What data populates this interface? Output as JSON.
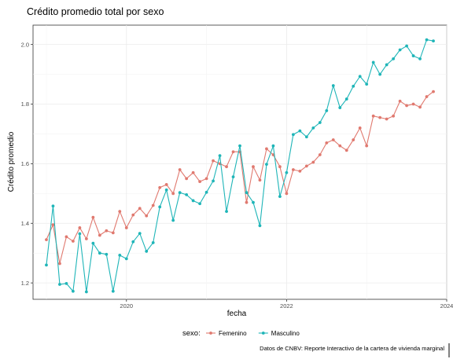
{
  "chart_data": {
    "type": "line",
    "title": "Crédito promedio total por sexo",
    "xlabel": "fecha",
    "ylabel": "Crédito promedio",
    "caption": "Datos de CNBV: Reporte Interactivo de la cartera de vivienda marginal",
    "legend": {
      "title": "sexo:",
      "placement": "bottom"
    },
    "x_axis": {
      "type": "date",
      "ticks": [
        "2020",
        "2022",
        "2024"
      ],
      "range": [
        "2018-11",
        "2024-01"
      ]
    },
    "y_axis": {
      "ticks": [
        "1.2",
        "1.4",
        "1.6",
        "1.8",
        "2.0"
      ],
      "range": [
        1.145,
        2.065
      ]
    },
    "grid": true,
    "x": [
      "2019-01",
      "2019-02",
      "2019-03",
      "2019-04",
      "2019-05",
      "2019-06",
      "2019-07",
      "2019-08",
      "2019-09",
      "2019-10",
      "2019-11",
      "2019-12",
      "2020-01",
      "2020-02",
      "2020-03",
      "2020-04",
      "2020-05",
      "2020-06",
      "2020-07",
      "2020-08",
      "2020-09",
      "2020-10",
      "2020-11",
      "2020-12",
      "2021-01",
      "2021-02",
      "2021-03",
      "2021-04",
      "2021-05",
      "2021-06",
      "2021-07",
      "2021-08",
      "2021-09",
      "2021-10",
      "2021-11",
      "2021-12",
      "2022-01",
      "2022-02",
      "2022-03",
      "2022-04",
      "2022-05",
      "2022-06",
      "2022-07",
      "2022-08",
      "2022-09",
      "2022-10",
      "2022-11",
      "2022-12",
      "2023-01",
      "2023-02",
      "2023-03",
      "2023-04",
      "2023-05",
      "2023-06",
      "2023-07",
      "2023-08",
      "2023-09",
      "2023-10",
      "2023-11"
    ],
    "series": [
      {
        "name": "Femenino",
        "color": "#E0796F",
        "values": [
          1.345,
          1.395,
          1.265,
          1.355,
          1.34,
          1.385,
          1.348,
          1.42,
          1.36,
          1.375,
          1.368,
          1.44,
          1.385,
          1.428,
          1.45,
          1.425,
          1.46,
          1.52,
          1.53,
          1.5,
          1.58,
          1.55,
          1.57,
          1.54,
          1.55,
          1.61,
          1.6,
          1.59,
          1.64,
          1.64,
          1.47,
          1.59,
          1.545,
          1.65,
          1.63,
          1.59,
          1.5,
          1.58,
          1.575,
          1.592,
          1.605,
          1.63,
          1.67,
          1.68,
          1.66,
          1.645,
          1.68,
          1.72,
          1.66,
          1.76,
          1.755,
          1.75,
          1.76,
          1.81,
          1.795,
          1.8,
          1.79,
          1.825,
          1.842
        ]
      },
      {
        "name": "Masculino",
        "color": "#1FB5B8",
        "values": [
          1.26,
          1.458,
          1.195,
          1.198,
          1.172,
          1.365,
          1.17,
          1.333,
          1.3,
          1.296,
          1.172,
          1.293,
          1.281,
          1.338,
          1.366,
          1.306,
          1.335,
          1.455,
          1.512,
          1.41,
          1.503,
          1.496,
          1.476,
          1.466,
          1.504,
          1.542,
          1.627,
          1.44,
          1.556,
          1.66,
          1.503,
          1.47,
          1.392,
          1.598,
          1.66,
          1.49,
          1.57,
          1.698,
          1.71,
          1.69,
          1.72,
          1.738,
          1.778,
          1.862,
          1.788,
          1.817,
          1.86,
          1.893,
          1.867,
          1.94,
          1.9,
          1.932,
          1.952,
          1.982,
          1.995,
          1.962,
          1.952,
          2.016,
          2.012
        ]
      }
    ]
  }
}
